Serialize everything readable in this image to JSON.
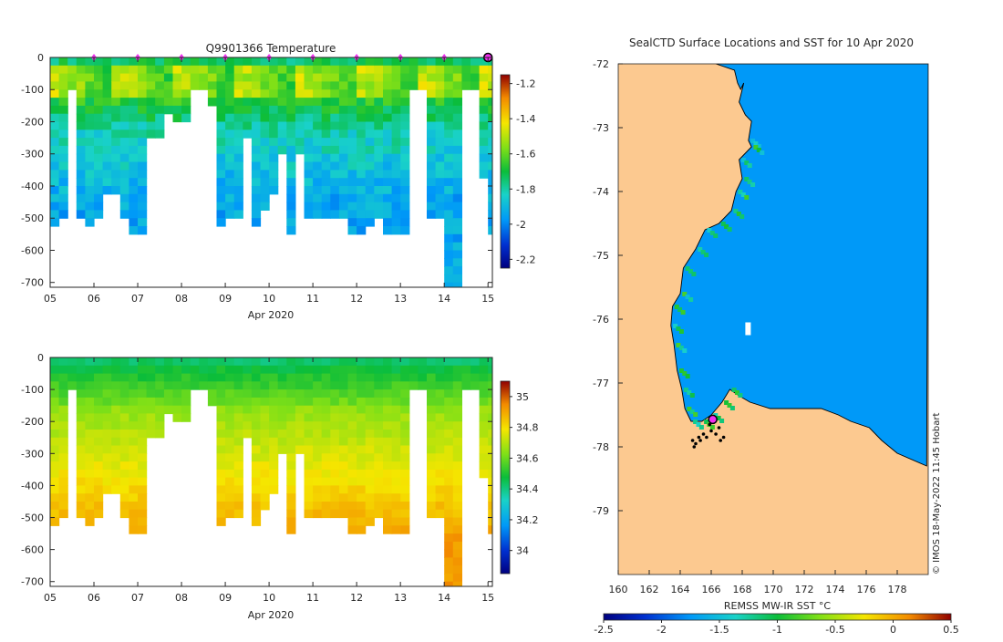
{
  "chart_data": [
    {
      "type": "heatmap",
      "title": "Q9901366  Temperature",
      "xlabel": "Apr 2020",
      "ylabel": "",
      "x_ticks": [
        "05",
        "06",
        "07",
        "08",
        "09",
        "10",
        "11",
        "12",
        "13",
        "14",
        "15"
      ],
      "xlim": [
        5,
        15.1
      ],
      "ylim": [
        -715,
        0
      ],
      "y_ticks": [
        0,
        -100,
        -200,
        -300,
        -400,
        -500,
        -600,
        -700
      ],
      "colorbar": {
        "min": -2.25,
        "max": -1.15,
        "ticks": [
          -1.2,
          -1.4,
          -1.6,
          -1.8,
          -2.0,
          -2.2
        ],
        "tick_labels": [
          "-1.2",
          "-1.4",
          "-1.6",
          "-1.8",
          "-2",
          "-2.2"
        ]
      },
      "marker_days": [
        6,
        7,
        8,
        9,
        10,
        11,
        12,
        13,
        14
      ],
      "last_marker_day": 15,
      "profile_days": [
        5.0,
        5.2,
        5.4,
        5.6,
        5.8,
        6.0,
        6.2,
        6.4,
        6.6,
        6.8,
        7.0,
        7.2,
        7.4,
        7.6,
        7.8,
        8.0,
        8.2,
        8.4,
        8.6,
        8.8,
        9.0,
        9.2,
        9.4,
        9.6,
        9.8,
        10.0,
        10.2,
        10.4,
        10.6,
        10.8,
        11.0,
        11.2,
        11.4,
        11.6,
        11.8,
        12.0,
        12.2,
        12.4,
        12.6,
        12.8,
        13.0,
        13.2,
        13.4,
        13.6,
        13.8,
        14.0,
        14.2,
        14.4,
        14.6,
        14.8,
        15.0
      ],
      "profile_max_depth": [
        510,
        500,
        90,
        500,
        525,
        480,
        410,
        410,
        480,
        530,
        550,
        230,
        230,
        160,
        200,
        200,
        95,
        95,
        150,
        510,
        480,
        480,
        250,
        510,
        460,
        410,
        300,
        550,
        300,
        490,
        490,
        500,
        500,
        500,
        530,
        530,
        510,
        500,
        530,
        530,
        530,
        90,
        90,
        500,
        480,
        715,
        715,
        80,
        80,
        370,
        550
      ]
    },
    {
      "type": "heatmap",
      "title": "",
      "xlabel": "Apr 2020",
      "ylabel": "",
      "x_ticks": [
        "05",
        "06",
        "07",
        "08",
        "09",
        "10",
        "11",
        "12",
        "13",
        "14",
        "15"
      ],
      "xlim": [
        5,
        15.1
      ],
      "ylim": [
        -715,
        0
      ],
      "y_ticks": [
        0,
        -100,
        -200,
        -300,
        -400,
        -500,
        -600,
        -700
      ],
      "colorbar": {
        "min": 33.85,
        "max": 35.1,
        "ticks": [
          35,
          34.8,
          34.6,
          34.4,
          34.2,
          34
        ],
        "tick_labels": [
          "35",
          "34.8",
          "34.6",
          "34.4",
          "34.2",
          "34"
        ]
      }
    },
    {
      "type": "heatmap",
      "title": "SealCTD Surface Locations and SST for 10 Apr 2020",
      "xlabel": "",
      "ylabel": "",
      "x_ticks": [
        160,
        162,
        164,
        166,
        168,
        170,
        172,
        174,
        176,
        178
      ],
      "y_ticks": [
        -72,
        -73,
        -74,
        -75,
        -76,
        -77,
        -78,
        -79
      ],
      "xlim": [
        160,
        180
      ],
      "ylim": [
        -80,
        -72
      ],
      "colorbar": {
        "label": "REMSS MW-IR SST °C",
        "min": -2.5,
        "max": 0.5,
        "ticks": [
          -2.5,
          -2,
          -1.5,
          -1,
          -0.5,
          0,
          0.5
        ],
        "tick_labels": [
          "-2.5",
          "-2",
          "-1.5",
          "-1",
          "-0.5",
          "0",
          "0.5"
        ]
      },
      "coastline": [
        [
          166.3,
          -72
        ],
        [
          167.5,
          -72.1
        ],
        [
          167.7,
          -72.3
        ],
        [
          167.9,
          -72.4
        ],
        [
          168.1,
          -72.3
        ],
        [
          167.8,
          -72.6
        ],
        [
          168.2,
          -72.8
        ],
        [
          168.6,
          -72.9
        ],
        [
          168.4,
          -73.2
        ],
        [
          168.6,
          -73.3
        ],
        [
          167.8,
          -73.5
        ],
        [
          168,
          -73.8
        ],
        [
          167.6,
          -74
        ],
        [
          167.3,
          -74.3
        ],
        [
          166.5,
          -74.5
        ],
        [
          165.6,
          -74.6
        ],
        [
          165,
          -74.9
        ],
        [
          164.2,
          -75.2
        ],
        [
          164,
          -75.6
        ],
        [
          163.5,
          -75.8
        ],
        [
          163.4,
          -76.1
        ],
        [
          163.6,
          -76.4
        ],
        [
          163.8,
          -76.8
        ],
        [
          164.1,
          -77.1
        ],
        [
          164.3,
          -77.4
        ],
        [
          164.7,
          -77.6
        ],
        [
          165.4,
          -77.6
        ],
        [
          166.0,
          -77.5
        ],
        [
          166.7,
          -77.3
        ],
        [
          167.2,
          -77.1
        ],
        [
          167.8,
          -77.2
        ],
        [
          168.5,
          -77.3
        ],
        [
          169.8,
          -77.4
        ],
        [
          171.4,
          -77.4
        ],
        [
          173.1,
          -77.4
        ],
        [
          174.2,
          -77.5
        ],
        [
          175,
          -77.6
        ],
        [
          176.2,
          -77.7
        ],
        [
          177,
          -77.9
        ],
        [
          178,
          -78.1
        ],
        [
          179.9,
          -78.3
        ]
      ],
      "seal_locations": [
        [
          164.8,
          -77.9
        ],
        [
          165,
          -77.95
        ],
        [
          165.3,
          -77.9
        ],
        [
          165.5,
          -77.8
        ],
        [
          165.7,
          -77.85
        ],
        [
          166,
          -77.75
        ],
        [
          166.3,
          -77.8
        ],
        [
          166.6,
          -77.9
        ],
        [
          166.8,
          -77.85
        ],
        [
          164.9,
          -78.0
        ],
        [
          165.2,
          -77.85
        ],
        [
          166.5,
          -77.7
        ],
        [
          165.9,
          -77.65
        ],
        [
          166.1,
          -77.6
        ]
      ],
      "current_location": [
        166.1,
        -77.57
      ]
    }
  ],
  "watermark": "© IMOS 18-May-2022 11:45 Hobart",
  "colors": {
    "land": "#fcc990",
    "sea": "#0099f8",
    "marker": "#f030f0"
  }
}
